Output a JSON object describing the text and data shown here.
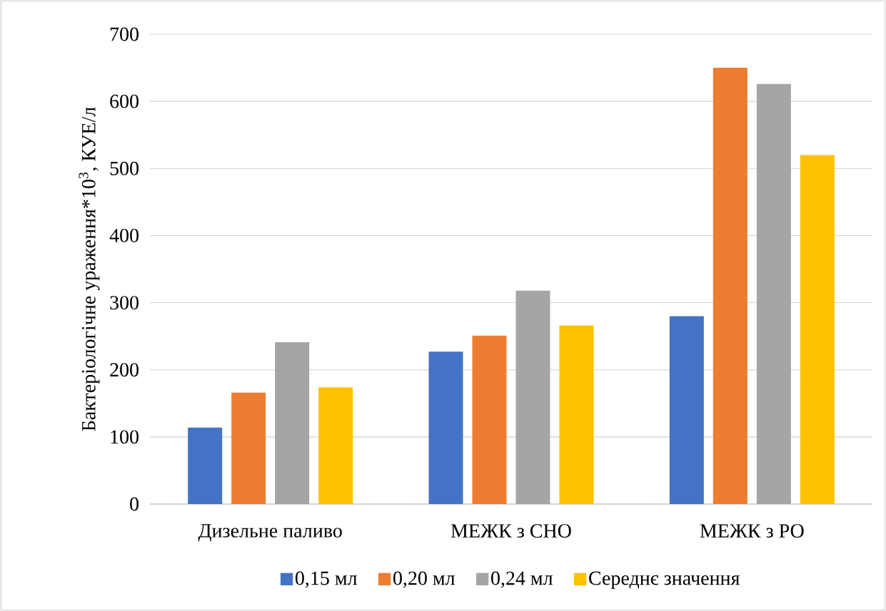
{
  "chart_data": {
    "type": "bar",
    "ylabel": "Бактеріологічне ураження*10$^{3}$, КУЕ/л",
    "categories": [
      "Дизельне паливо",
      "МЕЖК з СНО",
      "МЕЖК з РО"
    ],
    "series": [
      {
        "name": "0,15 мл",
        "color": "#4472c4",
        "values": [
          114,
          227,
          280
        ]
      },
      {
        "name": "0,20 мл",
        "color": "#ed7d31",
        "values": [
          166,
          251,
          650
        ]
      },
      {
        "name": "0,24 мл",
        "color": "#a5a5a5",
        "values": [
          241,
          318,
          626
        ]
      },
      {
        "name": "Середнє значення",
        "color": "#ffc000",
        "values": [
          174,
          266,
          520
        ]
      }
    ],
    "ylim": [
      0,
      700
    ],
    "yticks": [
      0,
      100,
      200,
      300,
      400,
      500,
      600,
      700
    ],
    "grid": "y",
    "legend": "bottom"
  }
}
